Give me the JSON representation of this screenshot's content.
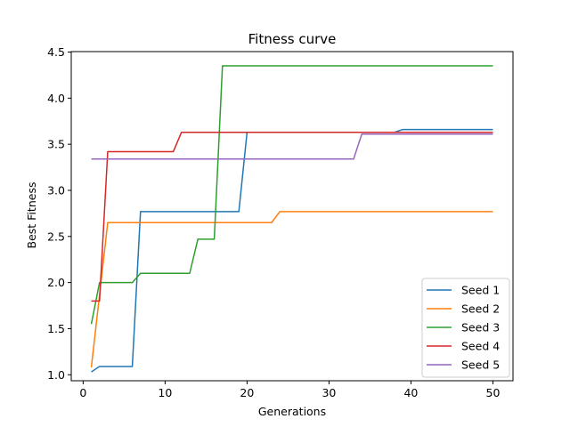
{
  "chart_data": {
    "type": "line",
    "title": "Fitness curve",
    "xlabel": "Generations",
    "ylabel": "Best Fitness",
    "xlim": [
      -1.45,
      52.45
    ],
    "ylim": [
      0.935,
      4.505
    ],
    "xticks": [
      0,
      10,
      20,
      30,
      40,
      50
    ],
    "yticks": [
      1.0,
      1.5,
      2.0,
      2.5,
      3.0,
      3.5,
      4.0,
      4.5
    ],
    "grid": false,
    "legend": "lower-right",
    "series": [
      {
        "name": "Seed 1",
        "color": "#1f77b4",
        "x": [
          1,
          2,
          6,
          7,
          19,
          20,
          38,
          39,
          50
        ],
        "y": [
          1.03,
          1.09,
          1.09,
          2.77,
          2.77,
          3.63,
          3.63,
          3.66,
          3.66
        ]
      },
      {
        "name": "Seed 2",
        "color": "#ff7f0e",
        "x": [
          1,
          3,
          23,
          24,
          50
        ],
        "y": [
          1.08,
          2.65,
          2.65,
          2.77,
          2.77
        ]
      },
      {
        "name": "Seed 3",
        "color": "#2ca02c",
        "x": [
          1,
          2,
          6,
          7,
          13,
          14,
          16,
          17,
          50
        ],
        "y": [
          1.55,
          2.0,
          2.0,
          2.1,
          2.1,
          2.47,
          2.47,
          4.35,
          4.35
        ]
      },
      {
        "name": "Seed 4",
        "color": "#d62728",
        "x": [
          1,
          2,
          3,
          11,
          12,
          50
        ],
        "y": [
          1.8,
          1.8,
          3.42,
          3.42,
          3.63,
          3.63
        ]
      },
      {
        "name": "Seed 5",
        "color": "#9467bd",
        "x": [
          1,
          33,
          34,
          50
        ],
        "y": [
          3.34,
          3.34,
          3.61,
          3.61
        ]
      }
    ]
  }
}
